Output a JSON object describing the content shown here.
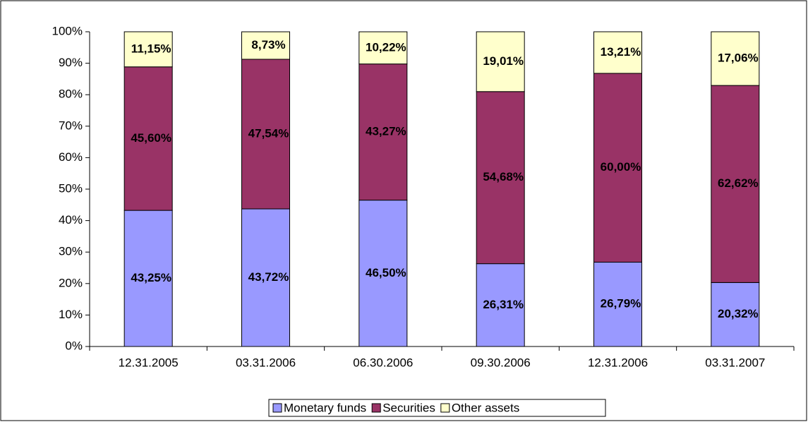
{
  "chart_data": {
    "type": "stacked_bar",
    "categories": [
      "12.31.2005",
      "03.31.2006",
      "06.30.2006",
      "09.30.2006",
      "12.31.2006",
      "03.31.2007"
    ],
    "series": [
      {
        "name": "Monetary funds",
        "color": "#9999ff",
        "values": [
          43.25,
          43.72,
          46.5,
          26.31,
          26.79,
          20.32
        ],
        "value_labels": [
          "43,25%",
          "43,72%",
          "46,50%",
          "26,31%",
          "26,79%",
          "20,32%"
        ]
      },
      {
        "name": "Securities",
        "color": "#993366",
        "values": [
          45.6,
          47.54,
          43.27,
          54.68,
          60.0,
          62.62
        ],
        "value_labels": [
          "45,60%",
          "47,54%",
          "43,27%",
          "54,68%",
          "60,00%",
          "62,62%"
        ]
      },
      {
        "name": "Other assets",
        "color": "#ffffcc",
        "values": [
          11.15,
          8.73,
          10.22,
          19.01,
          13.21,
          17.06
        ],
        "value_labels": [
          "11,15%",
          "8,73%",
          "10,22%",
          "19,01%",
          "13,21%",
          "17,06%"
        ]
      }
    ],
    "ylim": [
      0,
      100
    ],
    "yticks": [
      {
        "value": 0,
        "label": "0%"
      },
      {
        "value": 10,
        "label": "10%"
      },
      {
        "value": 20,
        "label": "20%"
      },
      {
        "value": 30,
        "label": "30%"
      },
      {
        "value": 40,
        "label": "40%"
      },
      {
        "value": 50,
        "label": "50%"
      },
      {
        "value": 60,
        "label": "60%"
      },
      {
        "value": 70,
        "label": "70%"
      },
      {
        "value": 80,
        "label": "80%"
      },
      {
        "value": 90,
        "label": "90%"
      },
      {
        "value": 100,
        "label": "100%"
      }
    ],
    "grid": false,
    "legend": "bottom"
  }
}
